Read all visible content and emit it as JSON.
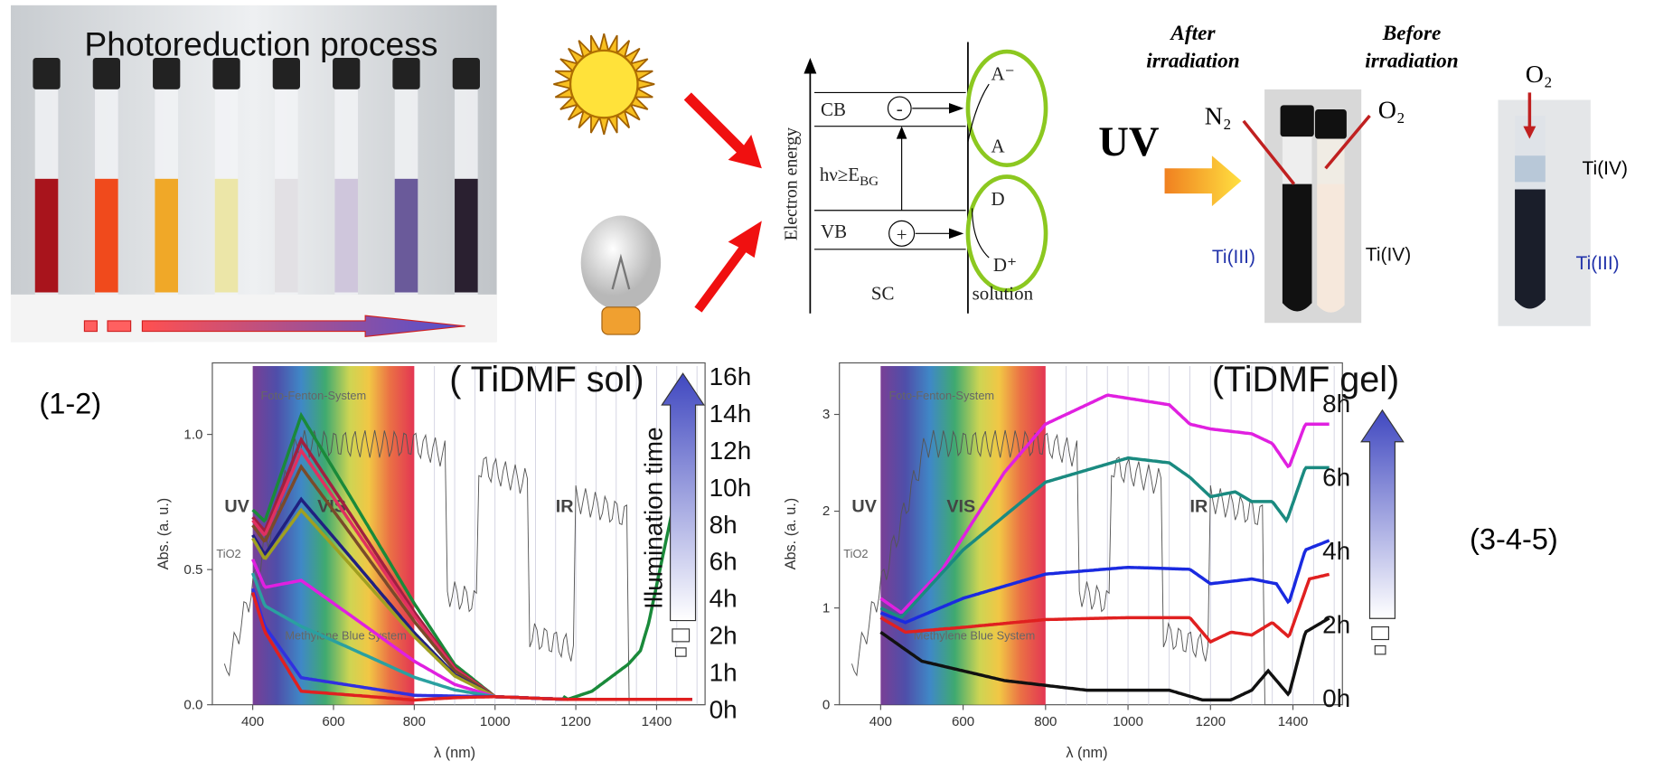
{
  "photo_panel": {
    "title": "Photoreduction process"
  },
  "scheme": {
    "axis_label": "Electron energy",
    "cb": "CB",
    "vb": "VB",
    "excitation": "hν≥E",
    "excitation_sub": "BG",
    "minus": "-",
    "plus": "+",
    "acceptor_reduced": "A⁻",
    "acceptor": "A",
    "donor": "D",
    "donor_oxidized": "D⁺",
    "sc": "SC",
    "solution": "solution"
  },
  "vials": {
    "after": [
      "After",
      "irradiation"
    ],
    "before": [
      "Before",
      "irradiation"
    ],
    "uv": "UV",
    "n2": "N₂",
    "o2": "O₂",
    "o2_right": "O₂",
    "ti3_left": "Ti(III)",
    "ti4_mid": "Ti(IV)",
    "ti4_right": "Ti(IV)",
    "ti3_right": "Ti(III)"
  },
  "label_left": "(1-2)",
  "label_right": "(3-4-5)",
  "chart_sol": {
    "title": "( TiDMF sol)",
    "ylabel": "Abs. (a. u.)",
    "xlabel": "λ (nm)",
    "xticks": [
      "400",
      "600",
      "800",
      "1000",
      "1200",
      "1400"
    ],
    "yticks": [
      "0.0",
      "0.5",
      "1.0"
    ],
    "regions": [
      "UV",
      "VIS",
      "IR"
    ],
    "annotations": [
      "Foto-Fenton-System",
      "TiO2",
      "Methylene Blue System"
    ],
    "legend_title": "Illumination time",
    "times": [
      "16h",
      "14h",
      "12h",
      "10h",
      "8h",
      "6h",
      "4h",
      "2h",
      "1h",
      "0h"
    ]
  },
  "chart_gel": {
    "title": "(TiDMF gel)",
    "ylabel": "Abs. (a. u.)",
    "xlabel": "λ (nm)",
    "xticks": [
      "400",
      "600",
      "800",
      "1000",
      "1200",
      "1400"
    ],
    "yticks": [
      "0",
      "1",
      "2",
      "3"
    ],
    "regions": [
      "UV",
      "VIS",
      "IR"
    ],
    "annotations": [
      "Foto-Fenton-System",
      "TiO2",
      "Methylene Blue System"
    ],
    "times": [
      "8h",
      "6h",
      "4h",
      "2h",
      "0h"
    ]
  }
}
